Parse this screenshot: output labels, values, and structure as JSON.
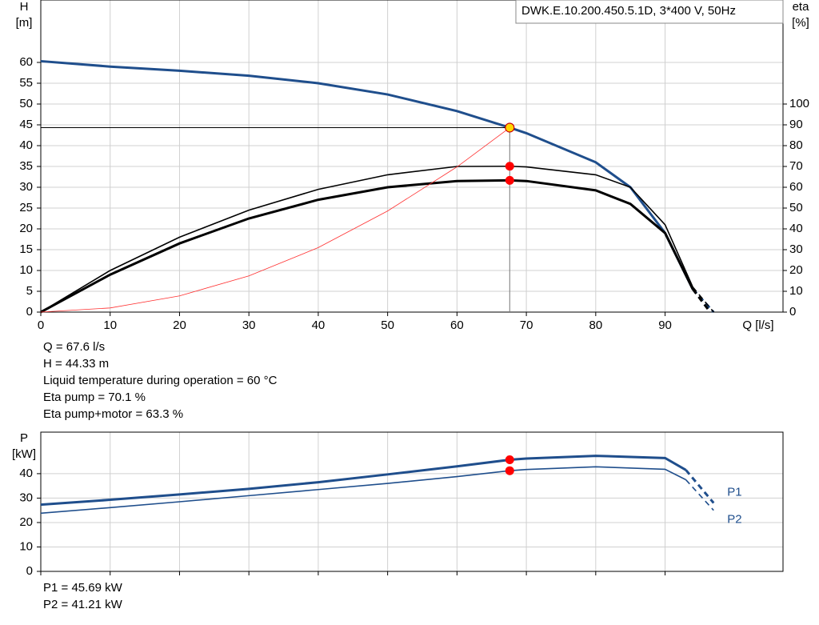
{
  "chart_data": [
    {
      "type": "line",
      "title": "DWK.E.10.200.450.5.1D, 3*400  V, 50Hz",
      "y_label": [
        "H",
        "[m]"
      ],
      "y2_label": [
        "eta",
        "[%]"
      ],
      "x_label": "Q [l/s]",
      "xlim": [
        0,
        107
      ],
      "ylim": [
        0,
        75
      ],
      "y2lim": [
        0,
        150
      ],
      "xticks": [
        0,
        10,
        20,
        30,
        40,
        50,
        60,
        70,
        80,
        90
      ],
      "yticks": [
        0,
        5,
        10,
        15,
        20,
        25,
        30,
        35,
        40,
        45,
        50,
        55,
        60
      ],
      "y2ticks": [
        0,
        10,
        20,
        30,
        40,
        50,
        60,
        70,
        80,
        90,
        100
      ],
      "grid": true,
      "series": [
        {
          "color": "#1f4e8c",
          "width": 3,
          "axis": "y",
          "dashed_from_x": 94,
          "x": [
            0,
            10,
            20,
            30,
            40,
            50,
            60,
            67.6,
            70,
            80,
            85,
            90,
            94,
            97
          ],
          "values": [
            60.3,
            59,
            58,
            56.8,
            55,
            52.3,
            48.3,
            44.33,
            43,
            36,
            30,
            19,
            5.5,
            0
          ]
        },
        {
          "color": "#000000",
          "width": 1.6,
          "axis": "y2",
          "dashed_from_x": 94,
          "x": [
            0,
            10,
            20,
            30,
            40,
            50,
            60,
            67.6,
            70,
            80,
            85,
            90,
            94,
            97
          ],
          "values": [
            0,
            20,
            36,
            49,
            59,
            66,
            70,
            70.1,
            69.8,
            66,
            60,
            42,
            12,
            0
          ]
        },
        {
          "color": "#000000",
          "width": 3,
          "axis": "y2",
          "dashed_from_x": 94,
          "x": [
            0,
            10,
            20,
            30,
            40,
            50,
            60,
            67.6,
            70,
            80,
            85,
            90,
            94,
            96.5
          ],
          "values": [
            0,
            18,
            33,
            45,
            54,
            60,
            63,
            63.3,
            63,
            58.5,
            52,
            38,
            11,
            0
          ]
        },
        {
          "color": "#ff3030",
          "width": 0.8,
          "axis": "y",
          "x": [
            0,
            10,
            20,
            30,
            40,
            50,
            60,
            67.6
          ],
          "values": [
            0,
            1,
            3.9,
            8.7,
            15.5,
            24.3,
            34.9,
            44.33
          ]
        }
      ],
      "points": [
        {
          "x": 67.6,
          "y": 44.33,
          "axis": "y",
          "color": "#ffd700"
        },
        {
          "x": 67.6,
          "y": 70.1,
          "axis": "y2",
          "color": "#ff0000"
        },
        {
          "x": 67.6,
          "y": 63.3,
          "axis": "y2",
          "color": "#ff0000"
        }
      ],
      "notes": [
        "Q = 67.6 l/s",
        "H = 44.33 m",
        "Liquid temperature during operation = 60 °C",
        "Eta pump = 70.1 %",
        "Eta pump+motor = 63.3 %"
      ]
    },
    {
      "type": "line",
      "y_label": [
        "P",
        "[kW]"
      ],
      "xlim": [
        0,
        107
      ],
      "ylim": [
        0,
        57
      ],
      "xticks": [
        0,
        10,
        20,
        30,
        40,
        50,
        60,
        70,
        80,
        90
      ],
      "show_xtick_labels": false,
      "yticks": [
        0,
        10,
        20,
        30,
        40
      ],
      "grid": true,
      "series": [
        {
          "name": "P1",
          "color": "#1f4e8c",
          "width": 3,
          "axis": "y",
          "dashed_from_x": 93,
          "x": [
            0,
            10,
            20,
            30,
            40,
            50,
            60,
            67.6,
            70,
            80,
            90,
            93,
            97
          ],
          "values": [
            27.3,
            29.3,
            31.5,
            33.8,
            36.5,
            39.7,
            43,
            45.69,
            46.2,
            47.3,
            46.4,
            41.5,
            28
          ]
        },
        {
          "name": "P2",
          "color": "#1f4e8c",
          "width": 1.6,
          "axis": "y",
          "dashed_from_x": 93,
          "x": [
            0,
            10,
            20,
            30,
            40,
            50,
            60,
            67.6,
            70,
            80,
            90,
            93,
            97
          ],
          "values": [
            23.8,
            26.1,
            28.5,
            31,
            33.5,
            36,
            38.8,
            41.21,
            41.7,
            42.8,
            41.8,
            37.5,
            25
          ]
        }
      ],
      "points": [
        {
          "x": 67.6,
          "y": 45.69,
          "axis": "y",
          "color": "#ff0000"
        },
        {
          "x": 67.6,
          "y": 41.21,
          "axis": "y",
          "color": "#ff0000"
        }
      ],
      "notes": [
        "P1 = 45.69 kW",
        "P2 = 41.21 kW"
      ]
    }
  ]
}
